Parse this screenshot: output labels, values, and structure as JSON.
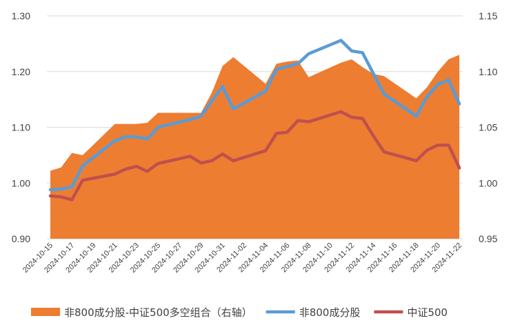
{
  "chart_data": {
    "type": "line",
    "x": [
      "2024-10-15",
      "2024-10-16",
      "2024-10-17",
      "2024-10-18",
      "2024-10-21",
      "2024-10-22",
      "2024-10-23",
      "2024-10-24",
      "2024-10-25",
      "2024-10-28",
      "2024-10-29",
      "2024-10-30",
      "2024-10-31",
      "2024-11-01",
      "2024-11-04",
      "2024-11-05",
      "2024-11-06",
      "2024-11-07",
      "2024-11-08",
      "2024-11-11",
      "2024-11-12",
      "2024-11-13",
      "2024-11-14",
      "2024-11-15",
      "2024-11-18",
      "2024-11-19",
      "2024-11-20",
      "2024-11-21",
      "2024-11-22"
    ],
    "x_tick_labels": [
      "2024-10-15",
      "2024-10-17",
      "2024-10-19",
      "2024-10-21",
      "2024-10-23",
      "2024-10-25",
      "2024-10-27",
      "2024-10-29",
      "2024-10-31",
      "2024-11-02",
      "2024-11-04",
      "2024-11-06",
      "2024-11-08",
      "2024-11-10",
      "2024-11-12",
      "2024-11-14",
      "2024-11-16",
      "2024-11-18",
      "2024-11-20",
      "2024-11-22"
    ],
    "x_ticks_calendar": true,
    "y_left": {
      "ylim": [
        0.9,
        1.3
      ],
      "ticks": [
        "0.90",
        "1.00",
        "1.10",
        "1.20",
        "1.30"
      ]
    },
    "y_right": {
      "ylim": [
        0.95,
        1.15
      ],
      "ticks": [
        "0.95",
        "1.00",
        "1.05",
        "1.10",
        "1.15"
      ]
    },
    "grid": true,
    "legend_position": "bottom",
    "series": [
      {
        "name": "非800成分股-中证500多空组合（右轴）",
        "kind": "area",
        "axis": "right",
        "color": "#ED7D31",
        "values": [
          1.011,
          1.014,
          1.027,
          1.025,
          1.053,
          1.053,
          1.053,
          1.054,
          1.063,
          1.063,
          1.063,
          1.081,
          1.105,
          1.113,
          1.089,
          1.107,
          1.109,
          1.11,
          1.095,
          1.108,
          1.111,
          1.104,
          1.098,
          1.096,
          1.076,
          1.086,
          1.1,
          1.111,
          1.115
        ]
      },
      {
        "name": "非800成分股",
        "kind": "line",
        "axis": "left",
        "color": "#5B9BD5",
        "values": [
          0.988,
          0.989,
          0.993,
          1.031,
          1.076,
          1.083,
          1.083,
          1.079,
          1.1,
          1.114,
          1.12,
          1.147,
          1.173,
          1.133,
          1.165,
          1.204,
          1.209,
          1.214,
          1.232,
          1.256,
          1.237,
          1.234,
          1.197,
          1.16,
          1.12,
          1.155,
          1.177,
          1.185,
          1.142
        ]
      },
      {
        "name": "中证500",
        "kind": "line",
        "axis": "left",
        "color": "#C0504D",
        "values": [
          0.977,
          0.975,
          0.97,
          1.005,
          1.016,
          1.025,
          1.03,
          1.021,
          1.035,
          1.048,
          1.036,
          1.04,
          1.052,
          1.04,
          1.058,
          1.089,
          1.091,
          1.112,
          1.11,
          1.128,
          1.118,
          1.116,
          1.085,
          1.056,
          1.04,
          1.059,
          1.068,
          1.068,
          1.027
        ]
      }
    ]
  }
}
